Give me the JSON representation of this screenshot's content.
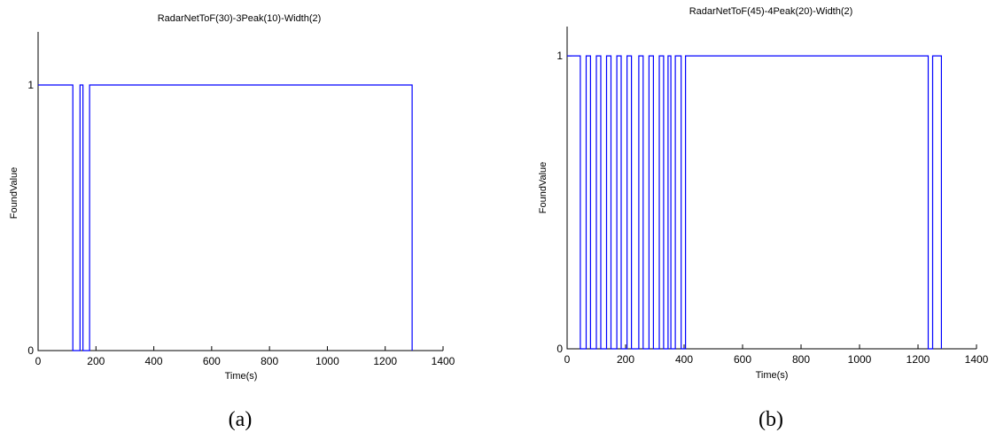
{
  "chart_data": [
    {
      "type": "line",
      "title": "RadarNetToF(30)-3Peak(10)-Width(2)",
      "xlabel": "Time(s)",
      "ylabel": "FoundValue",
      "xlim": [
        0,
        1400
      ],
      "ylim": [
        0,
        1.2
      ],
      "xticks": [
        0,
        200,
        400,
        600,
        800,
        1000,
        1200,
        1400
      ],
      "yticks": [
        0,
        1
      ],
      "caption": "(a)",
      "step": true,
      "series": [
        {
          "color": "#0000ff",
          "points": [
            [
              0,
              1
            ],
            [
              120,
              1
            ],
            [
              120,
              0
            ],
            [
              145,
              0
            ],
            [
              145,
              1
            ],
            [
              155,
              1
            ],
            [
              155,
              0
            ],
            [
              178,
              0
            ],
            [
              178,
              1
            ],
            [
              1293,
              1
            ],
            [
              1293,
              0
            ]
          ]
        }
      ]
    },
    {
      "type": "line",
      "title": "RadarNetToF(45)-4Peak(20)-Width(2)",
      "xlabel": "Time(s)",
      "ylabel": "FoundValue",
      "xlim": [
        0,
        1400
      ],
      "ylim": [
        0,
        1.1
      ],
      "xticks": [
        0,
        200,
        400,
        600,
        800,
        1000,
        1200,
        1400
      ],
      "yticks": [
        0,
        1
      ],
      "caption": "(b)",
      "step": true,
      "series": [
        {
          "color": "#0000ff",
          "points": [
            [
              0,
              1
            ],
            [
              45,
              1
            ],
            [
              45,
              0
            ],
            [
              65,
              0
            ],
            [
              65,
              1
            ],
            [
              80,
              1
            ],
            [
              80,
              0
            ],
            [
              100,
              0
            ],
            [
              100,
              1
            ],
            [
              115,
              1
            ],
            [
              115,
              0
            ],
            [
              135,
              0
            ],
            [
              135,
              1
            ],
            [
              150,
              1
            ],
            [
              150,
              0
            ],
            [
              170,
              0
            ],
            [
              170,
              1
            ],
            [
              185,
              1
            ],
            [
              185,
              0
            ],
            [
              205,
              0
            ],
            [
              205,
              1
            ],
            [
              220,
              1
            ],
            [
              220,
              0
            ],
            [
              245,
              0
            ],
            [
              245,
              1
            ],
            [
              260,
              1
            ],
            [
              260,
              0
            ],
            [
              280,
              0
            ],
            [
              280,
              1
            ],
            [
              295,
              1
            ],
            [
              295,
              0
            ],
            [
              315,
              0
            ],
            [
              315,
              1
            ],
            [
              330,
              1
            ],
            [
              330,
              0
            ],
            [
              345,
              0
            ],
            [
              345,
              1
            ],
            [
              355,
              1
            ],
            [
              355,
              0
            ],
            [
              370,
              0
            ],
            [
              370,
              1
            ],
            [
              390,
              1
            ],
            [
              390,
              0
            ],
            [
              405,
              0
            ],
            [
              405,
              1
            ],
            [
              1235,
              1
            ],
            [
              1235,
              0
            ],
            [
              1250,
              0
            ],
            [
              1250,
              1
            ],
            [
              1280,
              1
            ],
            [
              1280,
              0
            ]
          ]
        }
      ]
    }
  ]
}
